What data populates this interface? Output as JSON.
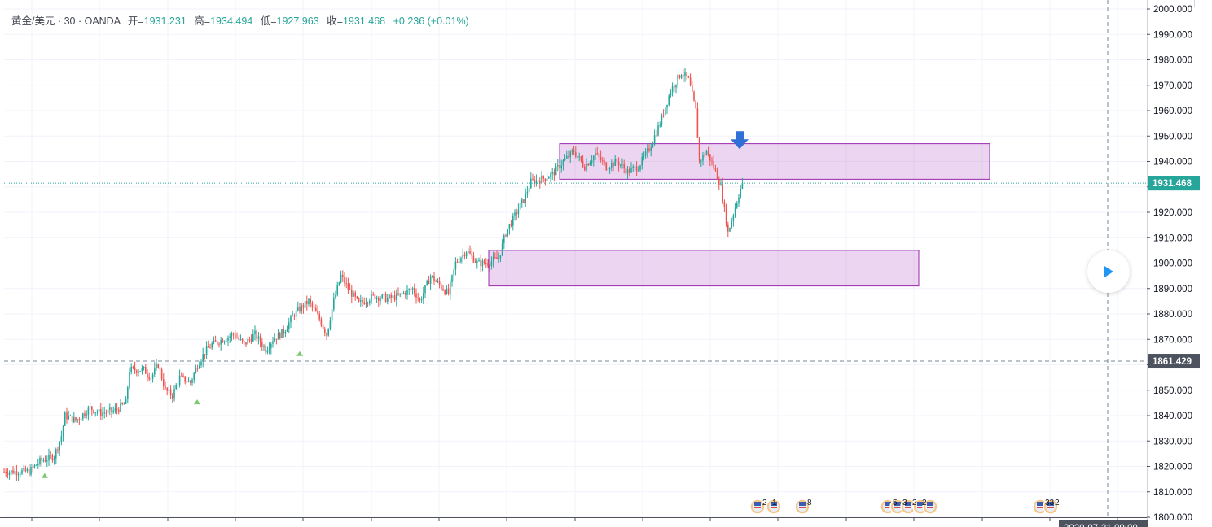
{
  "legend": {
    "symbol": "黄金/美元 · 30 · OANDA",
    "open_label": "开=",
    "open": "1931.231",
    "high_label": "高=",
    "high": "1934.494",
    "low_label": "低=",
    "low": "1927.963",
    "close_label": "收=",
    "close": "1931.468",
    "change": "+0.236 (+0.01%)"
  },
  "chart_data": {
    "type": "candlestick",
    "ylim": [
      1800,
      2000
    ],
    "y_ticks": [
      "2000.000",
      "1990.000",
      "1980.000",
      "1970.000",
      "1960.000",
      "1950.000",
      "1940.000",
      "1930.000",
      "1920.000",
      "1910.000",
      "1900.000",
      "1890.000",
      "1880.000",
      "1870.000",
      "1860.000",
      "1850.000",
      "1840.000",
      "1830.000",
      "1820.000",
      "1810.000",
      "1800.000"
    ],
    "last_price": "1931.468",
    "crosshair_price": "1861.429",
    "zones": [
      {
        "from_price": 1933,
        "to_price": 1947
      },
      {
        "from_price": 1891,
        "to_price": 1905
      }
    ],
    "date_label": "2020-07-31 09:00",
    "events": [
      {
        "count": "2",
        "count2": "1"
      },
      {
        "count": "8"
      },
      {
        "count": "5",
        "count2": "3",
        "count3": "2",
        "count4": "2"
      },
      {
        "count": "33",
        "count2": "2"
      }
    ],
    "path": [
      [
        0,
        1818
      ],
      [
        14,
        1818
      ],
      [
        20,
        1822
      ],
      [
        28,
        1824
      ],
      [
        32,
        1832
      ],
      [
        34,
        1840
      ],
      [
        40,
        1838
      ],
      [
        48,
        1843
      ],
      [
        54,
        1841
      ],
      [
        62,
        1842
      ],
      [
        68,
        1845
      ],
      [
        70,
        1858
      ],
      [
        78,
        1858
      ],
      [
        82,
        1855
      ],
      [
        86,
        1860
      ],
      [
        90,
        1850
      ],
      [
        94,
        1848
      ],
      [
        98,
        1855
      ],
      [
        104,
        1853
      ],
      [
        108,
        1860
      ],
      [
        112,
        1865
      ],
      [
        116,
        1868
      ],
      [
        122,
        1870
      ],
      [
        128,
        1872
      ],
      [
        134,
        1868
      ],
      [
        140,
        1872
      ],
      [
        146,
        1866
      ],
      [
        150,
        1870
      ],
      [
        156,
        1873
      ],
      [
        162,
        1880
      ],
      [
        170,
        1885
      ],
      [
        176,
        1878
      ],
      [
        180,
        1872
      ],
      [
        184,
        1885
      ],
      [
        188,
        1895
      ],
      [
        192,
        1890
      ],
      [
        198,
        1884
      ],
      [
        206,
        1887
      ],
      [
        214,
        1886
      ],
      [
        220,
        1887
      ],
      [
        228,
        1890
      ],
      [
        232,
        1885
      ],
      [
        238,
        1895
      ],
      [
        242,
        1892
      ],
      [
        248,
        1888
      ],
      [
        252,
        1900
      ],
      [
        258,
        1905
      ],
      [
        264,
        1900
      ],
      [
        270,
        1900
      ],
      [
        276,
        1902
      ],
      [
        280,
        1912
      ],
      [
        286,
        1920
      ],
      [
        290,
        1925
      ],
      [
        294,
        1932
      ],
      [
        300,
        1933
      ],
      [
        306,
        1935
      ],
      [
        312,
        1940
      ],
      [
        318,
        1944
      ],
      [
        324,
        1938
      ],
      [
        330,
        1943
      ],
      [
        336,
        1938
      ],
      [
        342,
        1940
      ],
      [
        348,
        1936
      ],
      [
        354,
        1938
      ],
      [
        360,
        1945
      ],
      [
        366,
        1955
      ],
      [
        372,
        1968
      ],
      [
        378,
        1975
      ],
      [
        382,
        1972
      ],
      [
        386,
        1960
      ],
      [
        388,
        1940
      ],
      [
        392,
        1944
      ],
      [
        396,
        1938
      ],
      [
        400,
        1930
      ],
      [
        404,
        1912
      ],
      [
        408,
        1922
      ],
      [
        410,
        1927
      ],
      [
        412,
        1931.468
      ]
    ]
  }
}
